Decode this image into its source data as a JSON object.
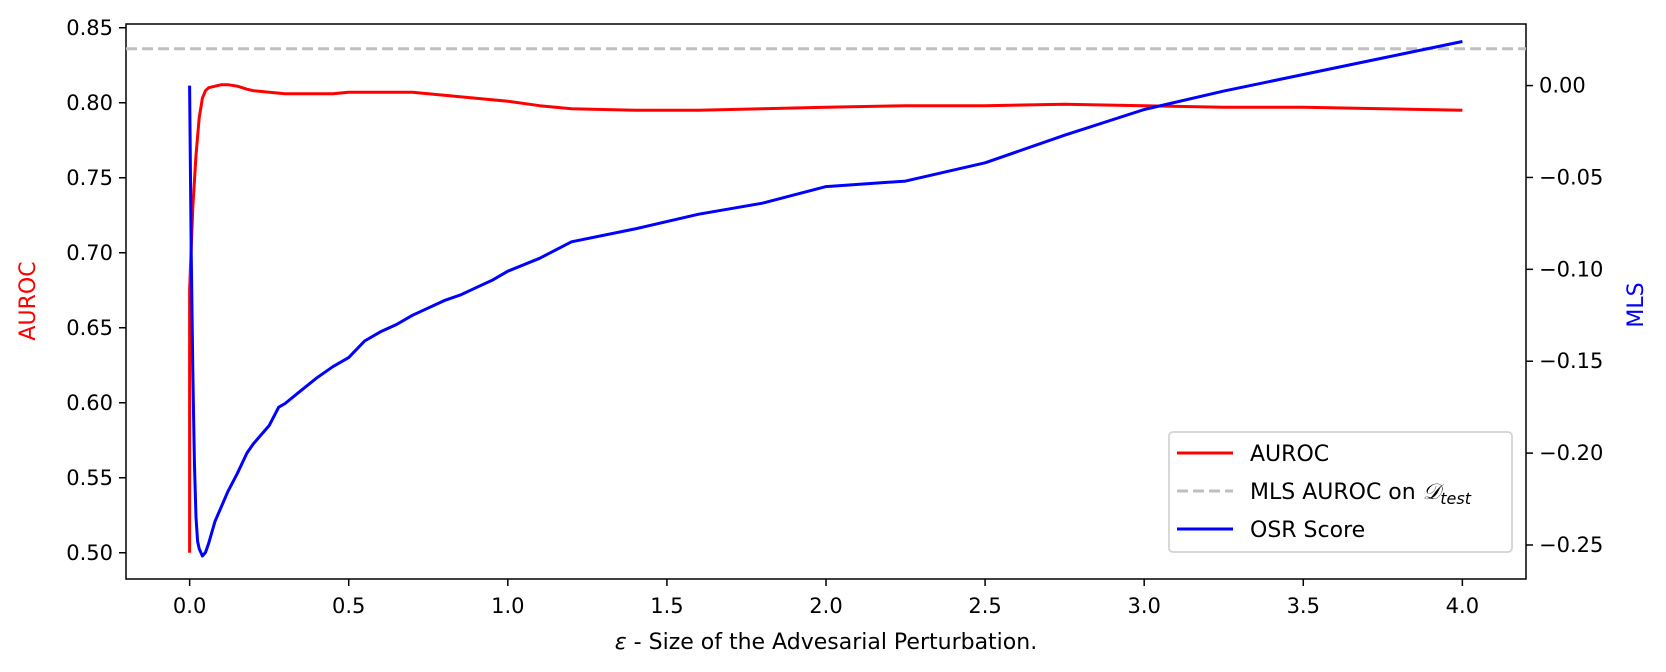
{
  "chart_data": {
    "type": "line",
    "title": "",
    "xlabel_symbol": "ε",
    "xlabel_text": " - Size of the Advesarial Perturbation.",
    "ylabel_left": "AUROC",
    "ylabel_right": "MLS",
    "xlim": [
      -0.2,
      4.2
    ],
    "ylim_left": [
      0.4825,
      0.8525
    ],
    "ylim_right": [
      -0.2685,
      0.0335
    ],
    "x_ticks": [
      0.0,
      0.5,
      1.0,
      1.5,
      2.0,
      2.5,
      3.0,
      3.5,
      4.0
    ],
    "x_tick_labels": [
      "0.0",
      "0.5",
      "1.0",
      "1.5",
      "2.0",
      "2.5",
      "3.0",
      "3.5",
      "4.0"
    ],
    "y_left_ticks": [
      0.5,
      0.55,
      0.6,
      0.65,
      0.7,
      0.75,
      0.8,
      0.85
    ],
    "y_left_tick_labels": [
      "0.50",
      "0.55",
      "0.60",
      "0.65",
      "0.70",
      "0.75",
      "0.80",
      "0.85"
    ],
    "y_right_ticks": [
      0.0,
      -0.05,
      -0.1,
      -0.15,
      -0.2,
      -0.25
    ],
    "y_right_tick_labels": [
      "0.00",
      "−0.05",
      "−0.10",
      "−0.15",
      "−0.20",
      "−0.25"
    ],
    "grid": false,
    "legend_position": "lower-right",
    "series": [
      {
        "name": "AUROC",
        "axis": "left",
        "color": "#ff0000",
        "style": "solid",
        "x": [
          0.0,
          0.0,
          0.01,
          0.02,
          0.03,
          0.04,
          0.05,
          0.06,
          0.08,
          0.1,
          0.12,
          0.15,
          0.18,
          0.2,
          0.25,
          0.3,
          0.35,
          0.4,
          0.45,
          0.5,
          0.55,
          0.6,
          0.65,
          0.7,
          0.75,
          0.8,
          0.9,
          1.0,
          1.1,
          1.2,
          1.4,
          1.6,
          1.8,
          2.0,
          2.25,
          2.5,
          2.75,
          3.0,
          3.25,
          3.5,
          3.75,
          4.0
        ],
        "y": [
          0.5,
          0.675,
          0.73,
          0.765,
          0.79,
          0.803,
          0.808,
          0.81,
          0.811,
          0.812,
          0.812,
          0.811,
          0.809,
          0.808,
          0.807,
          0.806,
          0.806,
          0.806,
          0.806,
          0.807,
          0.807,
          0.807,
          0.807,
          0.807,
          0.806,
          0.805,
          0.803,
          0.801,
          0.798,
          0.796,
          0.795,
          0.795,
          0.796,
          0.797,
          0.798,
          0.798,
          0.799,
          0.798,
          0.797,
          0.797,
          0.796,
          0.795
        ]
      },
      {
        "name": "MLS AUROC on D_test",
        "axis": "left",
        "color": "#bfbfbf",
        "style": "dashed",
        "x": [
          -0.2,
          4.2
        ],
        "y": [
          0.836,
          0.836
        ]
      },
      {
        "name": "OSR Score",
        "axis": "right",
        "color": "#0000ff",
        "style": "solid",
        "x": [
          0.0,
          0.005,
          0.01,
          0.015,
          0.02,
          0.025,
          0.03,
          0.04,
          0.05,
          0.06,
          0.07,
          0.08,
          0.1,
          0.12,
          0.15,
          0.18,
          0.2,
          0.25,
          0.28,
          0.3,
          0.35,
          0.4,
          0.45,
          0.5,
          0.55,
          0.6,
          0.65,
          0.7,
          0.8,
          0.85,
          0.9,
          0.95,
          1.0,
          1.1,
          1.2,
          1.4,
          1.6,
          1.8,
          2.0,
          2.25,
          2.5,
          2.75,
          3.0,
          3.25,
          3.5,
          3.75,
          4.0
        ],
        "y": [
          0.0,
          -0.09,
          -0.155,
          -0.205,
          -0.235,
          -0.248,
          -0.252,
          -0.256,
          -0.254,
          -0.249,
          -0.243,
          -0.237,
          -0.229,
          -0.221,
          -0.211,
          -0.2,
          -0.195,
          -0.185,
          -0.175,
          -0.173,
          -0.166,
          -0.159,
          -0.153,
          -0.148,
          -0.139,
          -0.134,
          -0.13,
          -0.125,
          -0.117,
          -0.114,
          -0.11,
          -0.106,
          -0.101,
          -0.094,
          -0.085,
          -0.078,
          -0.07,
          -0.064,
          -0.055,
          -0.052,
          -0.042,
          -0.027,
          -0.013,
          -0.003,
          0.006,
          0.015,
          0.024
        ]
      }
    ],
    "legend": [
      {
        "label": "AUROC",
        "color": "#ff0000",
        "style": "solid"
      },
      {
        "label_prefix": "MLS AUROC on ",
        "label_math": "𝒟",
        "label_sub": "test",
        "color": "#bfbfbf",
        "style": "dashed"
      },
      {
        "label": "OSR Score",
        "color": "#0000ff",
        "style": "solid"
      }
    ]
  }
}
